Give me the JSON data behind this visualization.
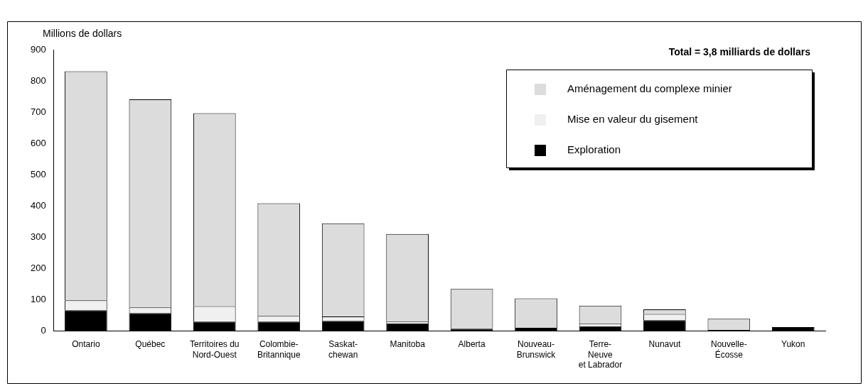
{
  "chart_data": {
    "type": "bar",
    "stacked": true,
    "ylabel": "Millions de dollars",
    "annotations": [
      "Total = 3,8 milliards de dollars"
    ],
    "categories": [
      "Ontario",
      "Québec",
      "Territoires du\nNord-Ouest",
      "Colombie-\nBritannique",
      "Saskat-\nchewan",
      "Manitoba",
      "Alberta",
      "Nouveau-\nBrunswick",
      "Terre-\nNeuve\net Labrador",
      "Nunavut",
      "Nouvelle-\nÉcosse",
      "Yukon"
    ],
    "series": [
      {
        "name": "Exploration",
        "color": "#000000",
        "values": [
          67,
          58,
          31,
          31,
          33,
          25,
          8,
          11,
          16,
          35,
          4,
          13
        ]
      },
      {
        "name": "Mise en valeur du gisement",
        "color": "#f0f0f0",
        "values": [
          32,
          18,
          49,
          18,
          14,
          7,
          0,
          0,
          9,
          20,
          0,
          0
        ]
      },
      {
        "name": "Aménagement du complexe minier",
        "color": "#dcdcdc",
        "values": [
          732,
          665,
          617,
          360,
          298,
          279,
          127,
          94,
          57,
          15,
          36,
          0
        ]
      }
    ],
    "ylim": [
      0,
      900
    ],
    "yticks": [
      0,
      100,
      200,
      300,
      400,
      500,
      600,
      700,
      800,
      900
    ],
    "grid": false,
    "legend": "top right"
  }
}
